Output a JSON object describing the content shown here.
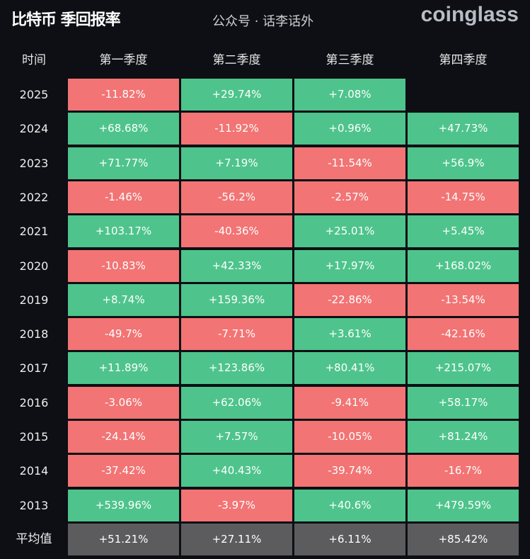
{
  "header": {
    "title": "比特币 季回报率",
    "logo": "coinglass"
  },
  "watermark": "公众号 · 话李话外",
  "colors": {
    "background": "#0d0f14",
    "positive": "#4ec48c",
    "negative": "#f27474",
    "average": "#5c5c5e"
  },
  "chart_data": {
    "type": "table",
    "title": "比特币 季回报率",
    "columns": [
      "时间",
      "第一季度",
      "第二季度",
      "第三季度",
      "第四季度"
    ],
    "rows": [
      {
        "year": "2025",
        "values": [
          "-11.82%",
          "+29.74%",
          "+7.08%",
          ""
        ]
      },
      {
        "year": "2024",
        "values": [
          "+68.68%",
          "-11.92%",
          "+0.96%",
          "+47.73%"
        ]
      },
      {
        "year": "2023",
        "values": [
          "+71.77%",
          "+7.19%",
          "-11.54%",
          "+56.9%"
        ]
      },
      {
        "year": "2022",
        "values": [
          "-1.46%",
          "-56.2%",
          "-2.57%",
          "-14.75%"
        ]
      },
      {
        "year": "2021",
        "values": [
          "+103.17%",
          "-40.36%",
          "+25.01%",
          "+5.45%"
        ]
      },
      {
        "year": "2020",
        "values": [
          "-10.83%",
          "+42.33%",
          "+17.97%",
          "+168.02%"
        ]
      },
      {
        "year": "2019",
        "values": [
          "+8.74%",
          "+159.36%",
          "-22.86%",
          "-13.54%"
        ]
      },
      {
        "year": "2018",
        "values": [
          "-49.7%",
          "-7.71%",
          "+3.61%",
          "-42.16%"
        ]
      },
      {
        "year": "2017",
        "values": [
          "+11.89%",
          "+123.86%",
          "+80.41%",
          "+215.07%"
        ]
      },
      {
        "year": "2016",
        "values": [
          "-3.06%",
          "+62.06%",
          "-9.41%",
          "+58.17%"
        ]
      },
      {
        "year": "2015",
        "values": [
          "-24.14%",
          "+7.57%",
          "-10.05%",
          "+81.24%"
        ]
      },
      {
        "year": "2014",
        "values": [
          "-37.42%",
          "+40.43%",
          "-39.74%",
          "-16.7%"
        ]
      },
      {
        "year": "2013",
        "values": [
          "+539.96%",
          "-3.97%",
          "+40.6%",
          "+479.59%"
        ]
      }
    ],
    "average": {
      "label": "平均值",
      "values": [
        "+51.21%",
        "+27.11%",
        "+6.11%",
        "+85.42%"
      ]
    }
  }
}
